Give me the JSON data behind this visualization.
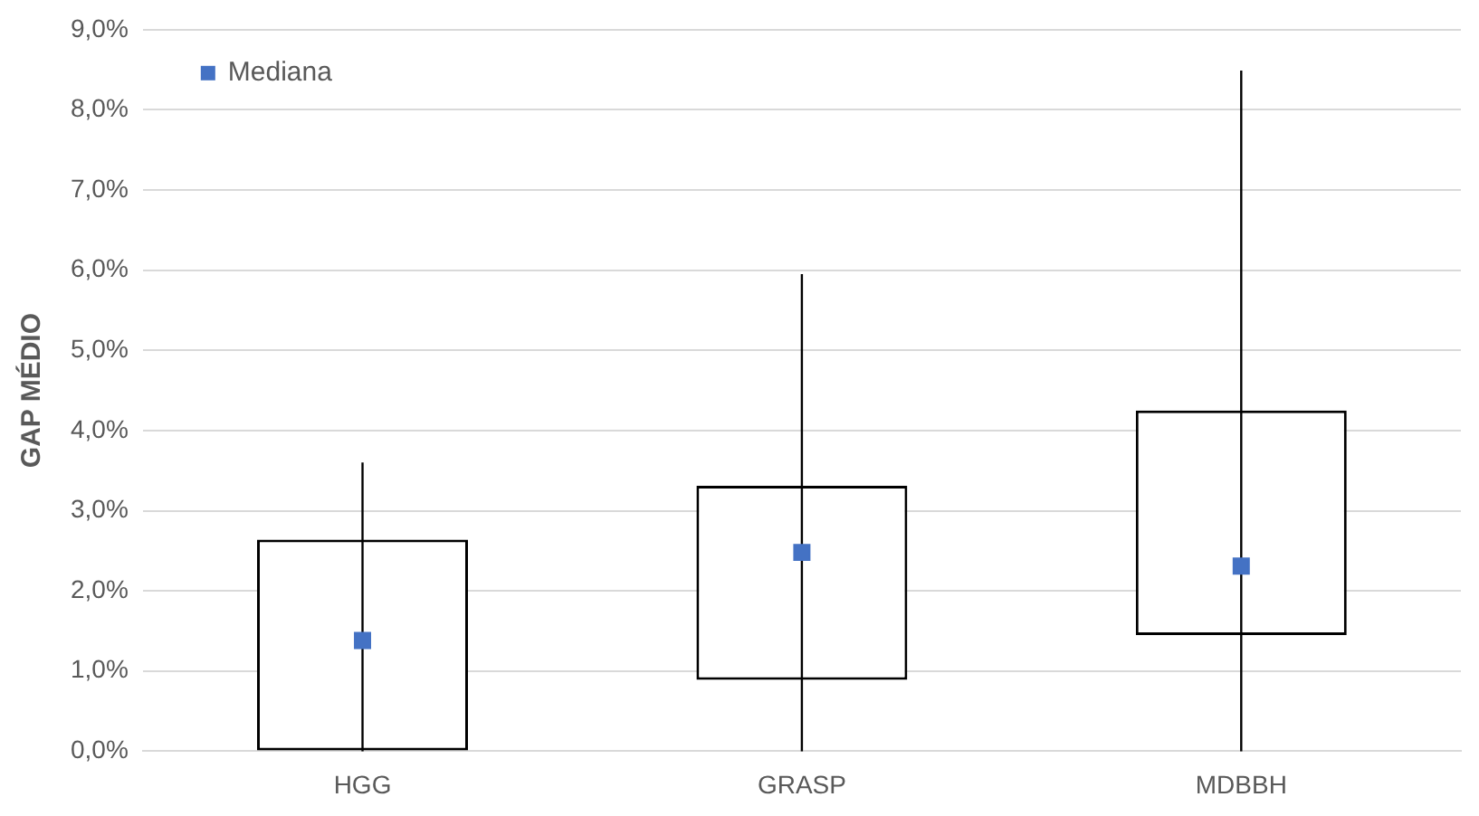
{
  "chart_data": {
    "type": "box",
    "ylabel": "GAP MÉDIO",
    "categories": [
      "HGG",
      "GRASP",
      "MDBBH"
    ],
    "series": [
      {
        "color": "#000000",
        "boxes": [
          {
            "low": 0,
            "q1": 0,
            "q3": 2.64,
            "high": 3.6
          },
          {
            "low": 0,
            "q1": 0.89,
            "q3": 3.31,
            "high": 5.95
          },
          {
            "low": 0,
            "q1": 1.45,
            "q3": 4.25,
            "high": 8.49
          }
        ]
      },
      {
        "type": "scatter",
        "name": "Mediana",
        "color": "#4472c4",
        "x": [
          "HGG",
          "GRASP",
          "MDBBH"
        ],
        "values": [
          1.38,
          2.48,
          2.31
        ]
      }
    ],
    "ylim": [
      0,
      9
    ],
    "yticks": [
      {
        "value": 0,
        "label": "0,0%"
      },
      {
        "value": 1,
        "label": "1,0%"
      },
      {
        "value": 2,
        "label": "2,0%"
      },
      {
        "value": 3,
        "label": "3,0%"
      },
      {
        "value": 4,
        "label": "4,0%"
      },
      {
        "value": 5,
        "label": "5,0%"
      },
      {
        "value": 6,
        "label": "6,0%"
      },
      {
        "value": 7,
        "label": "7,0%"
      },
      {
        "value": 8,
        "label": "8,0%"
      },
      {
        "value": 9,
        "label": "9,0%"
      }
    ],
    "grid": "y",
    "legend": "top left",
    "marker": "square"
  }
}
